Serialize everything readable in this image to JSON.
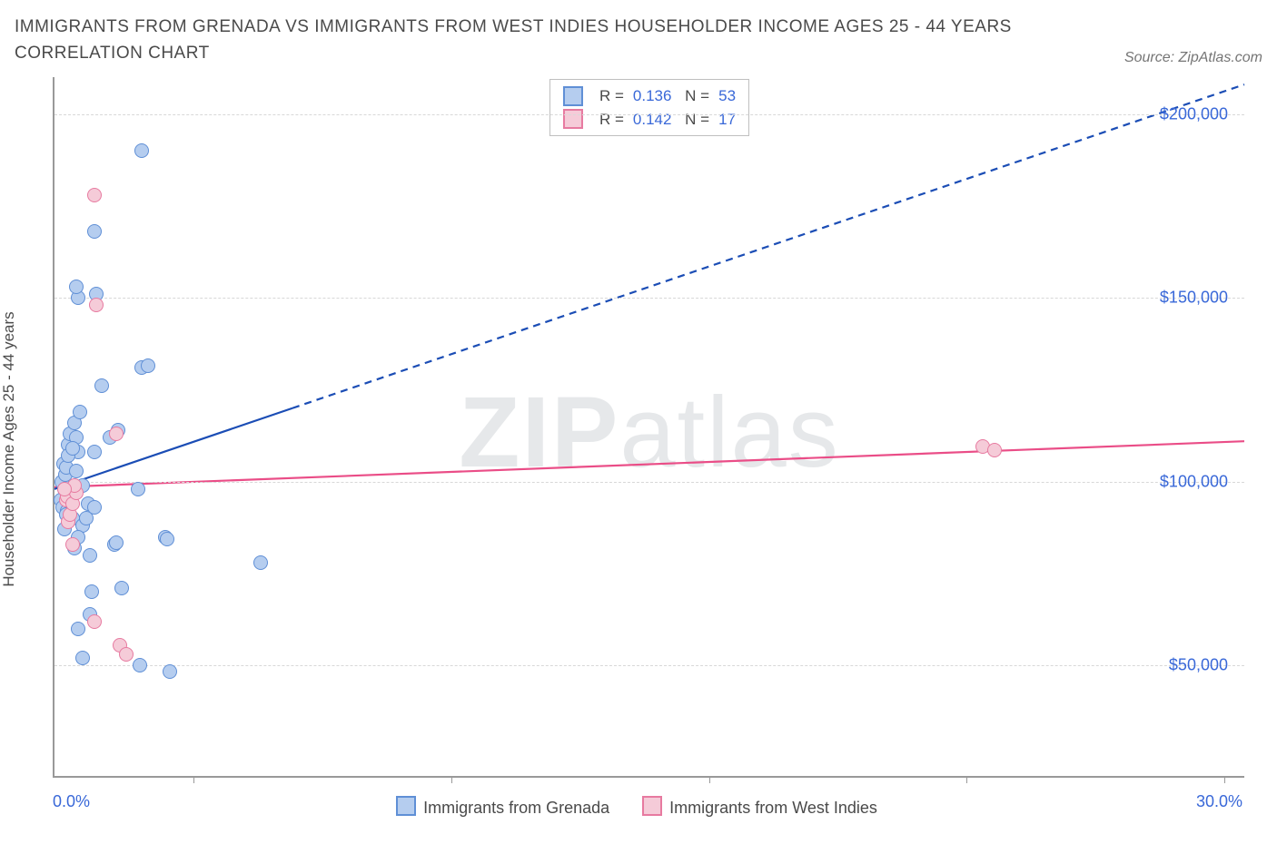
{
  "title": "IMMIGRANTS FROM GRENADA VS IMMIGRANTS FROM WEST INDIES HOUSEHOLDER INCOME AGES 25 - 44 YEARS CORRELATION CHART",
  "source": "Source: ZipAtlas.com",
  "watermark_bold": "ZIP",
  "watermark_light": "atlas",
  "chart": {
    "type": "scatter",
    "y_axis_label": "Householder Income Ages 25 - 44 years",
    "x_min": 0.0,
    "x_max": 30.0,
    "xlim_left_label": "0.0%",
    "xlim_right_label": "30.0%",
    "y_min": 20000,
    "y_max": 210000,
    "y_ticks": [
      50000,
      100000,
      150000,
      200000
    ],
    "y_tick_labels": [
      "$50,000",
      "$100,000",
      "$150,000",
      "$200,000"
    ],
    "x_minor_ticks": [
      3.5,
      10,
      16.5,
      23,
      29.5
    ],
    "grid_color": "#d8d8d8",
    "axis_color": "#999999",
    "label_color": "#3968d8",
    "series": [
      {
        "key": "grenada",
        "label": "Immigrants from Grenada",
        "R": "0.136",
        "N": "53",
        "fill": "#b5cdef",
        "stroke": "#5f8fd6",
        "line_color": "#1b4db5",
        "trend": {
          "x1": 0,
          "y1": 98000,
          "x2_solid": 6,
          "y2_solid": 120000,
          "x2_dash": 30,
          "y2_dash": 208000
        },
        "points": [
          {
            "x": 0.15,
            "y": 95000
          },
          {
            "x": 0.18,
            "y": 100000
          },
          {
            "x": 0.2,
            "y": 93000
          },
          {
            "x": 0.22,
            "y": 105000
          },
          {
            "x": 0.25,
            "y": 98000
          },
          {
            "x": 0.28,
            "y": 102000
          },
          {
            "x": 0.3,
            "y": 104000
          },
          {
            "x": 0.32,
            "y": 92000
          },
          {
            "x": 0.35,
            "y": 110000
          },
          {
            "x": 0.4,
            "y": 113000
          },
          {
            "x": 0.45,
            "y": 90000
          },
          {
            "x": 0.5,
            "y": 116000
          },
          {
            "x": 0.55,
            "y": 112000
          },
          {
            "x": 0.6,
            "y": 108000
          },
          {
            "x": 0.65,
            "y": 119000
          },
          {
            "x": 0.55,
            "y": 103000
          },
          {
            "x": 0.4,
            "y": 96000
          },
          {
            "x": 0.7,
            "y": 88000
          },
          {
            "x": 0.6,
            "y": 85000
          },
          {
            "x": 0.5,
            "y": 82000
          },
          {
            "x": 0.9,
            "y": 80000
          },
          {
            "x": 0.85,
            "y": 94000
          },
          {
            "x": 0.8,
            "y": 90000
          },
          {
            "x": 0.95,
            "y": 70000
          },
          {
            "x": 0.9,
            "y": 64000
          },
          {
            "x": 0.6,
            "y": 60000
          },
          {
            "x": 0.7,
            "y": 52000
          },
          {
            "x": 0.6,
            "y": 150000
          },
          {
            "x": 0.55,
            "y": 153000
          },
          {
            "x": 1.05,
            "y": 151000
          },
          {
            "x": 1.0,
            "y": 168000
          },
          {
            "x": 1.0,
            "y": 108000
          },
          {
            "x": 1.0,
            "y": 93000
          },
          {
            "x": 1.4,
            "y": 112000
          },
          {
            "x": 1.5,
            "y": 83000
          },
          {
            "x": 1.55,
            "y": 83500
          },
          {
            "x": 1.6,
            "y": 114000
          },
          {
            "x": 1.7,
            "y": 71000
          },
          {
            "x": 2.1,
            "y": 98000
          },
          {
            "x": 2.2,
            "y": 190000
          },
          {
            "x": 2.8,
            "y": 85000
          },
          {
            "x": 2.85,
            "y": 84500
          },
          {
            "x": 2.2,
            "y": 131000
          },
          {
            "x": 2.35,
            "y": 131500
          },
          {
            "x": 2.15,
            "y": 50000
          },
          {
            "x": 2.9,
            "y": 48500
          },
          {
            "x": 5.2,
            "y": 78000
          },
          {
            "x": 1.2,
            "y": 126000
          },
          {
            "x": 0.35,
            "y": 107000
          },
          {
            "x": 0.45,
            "y": 109000
          },
          {
            "x": 0.25,
            "y": 87000
          },
          {
            "x": 0.7,
            "y": 99000
          },
          {
            "x": 0.3,
            "y": 91000
          }
        ]
      },
      {
        "key": "westindies",
        "label": "Immigrants from West Indies",
        "R": "0.142",
        "N": "17",
        "fill": "#f5cbd8",
        "stroke": "#e77aa0",
        "line_color": "#ea4d87",
        "trend": {
          "x1": 0,
          "y1": 98500,
          "x2_solid": 30,
          "y2_solid": 111000
        },
        "points": [
          {
            "x": 0.3,
            "y": 95000
          },
          {
            "x": 0.32,
            "y": 96000
          },
          {
            "x": 0.35,
            "y": 89000
          },
          {
            "x": 0.4,
            "y": 91000
          },
          {
            "x": 0.45,
            "y": 94000
          },
          {
            "x": 0.55,
            "y": 97000
          },
          {
            "x": 0.5,
            "y": 99000
          },
          {
            "x": 1.0,
            "y": 178000
          },
          {
            "x": 1.05,
            "y": 148000
          },
          {
            "x": 1.55,
            "y": 113000
          },
          {
            "x": 1.0,
            "y": 62000
          },
          {
            "x": 1.65,
            "y": 55500
          },
          {
            "x": 1.8,
            "y": 53000
          },
          {
            "x": 23.4,
            "y": 109500
          },
          {
            "x": 23.7,
            "y": 108500
          },
          {
            "x": 0.45,
            "y": 83000
          },
          {
            "x": 0.25,
            "y": 98000
          }
        ]
      }
    ]
  }
}
